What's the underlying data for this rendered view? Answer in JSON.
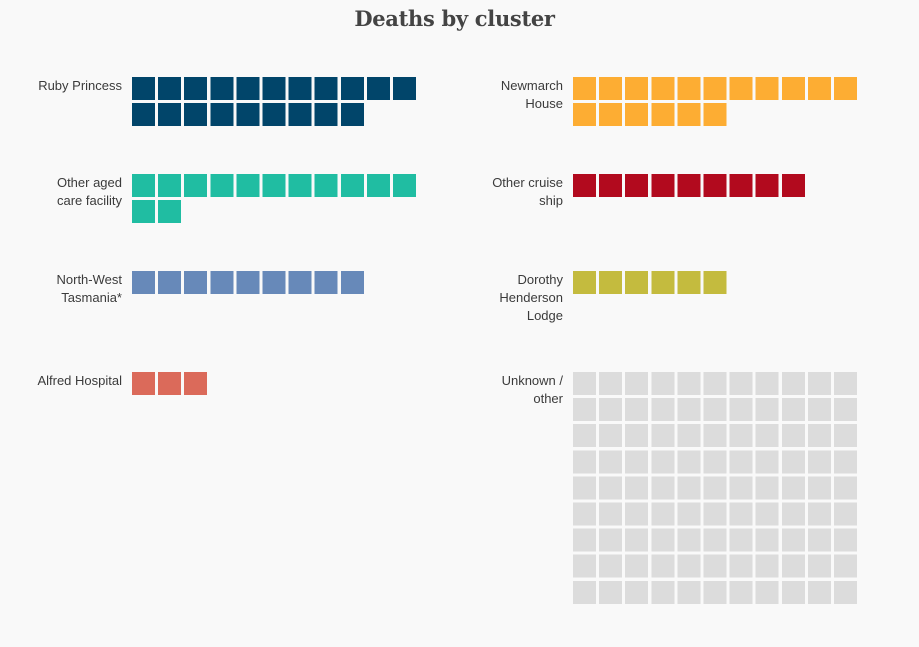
{
  "title": "Deaths by cluster",
  "chart_data": [
    {
      "type": "waffle",
      "title": "Deaths by cluster",
      "units_per_row": 11,
      "categories": [
        "Ruby Princess",
        "Newmarch House",
        "Other aged care facility",
        "Other cruise ship",
        "North-West Tasmania*",
        "Dorothy Henderson Lodge",
        "Alfred Hospital",
        "Unknown / other"
      ],
      "clusters": [
        {
          "key": "ruby",
          "label": "Ruby Princess",
          "value": 20,
          "color": "#01456a"
        },
        {
          "key": "newmarch",
          "label": "Newmarch\nHouse",
          "value": 17,
          "color": "#fdad33"
        },
        {
          "key": "otheraged",
          "label": "Other aged\ncare facility",
          "value": 13,
          "color": "#20bda2"
        },
        {
          "key": "othercruise",
          "label": "Other cruise\nship",
          "value": 9,
          "color": "#b20a1e"
        },
        {
          "key": "nwtas",
          "label": "North-West\nTasmania*",
          "value": 9,
          "color": "#6789b9"
        },
        {
          "key": "dorothy",
          "label": "Dorothy\nHenderson\nLodge",
          "value": 6,
          "color": "#c4bb3e"
        },
        {
          "key": "alfred",
          "label": "Alfred Hospital",
          "value": 3,
          "color": "#db6a5a"
        },
        {
          "key": "unknown",
          "label": "Unknown /\nother",
          "value": 99,
          "color": "#dcdcdc"
        }
      ]
    }
  ]
}
